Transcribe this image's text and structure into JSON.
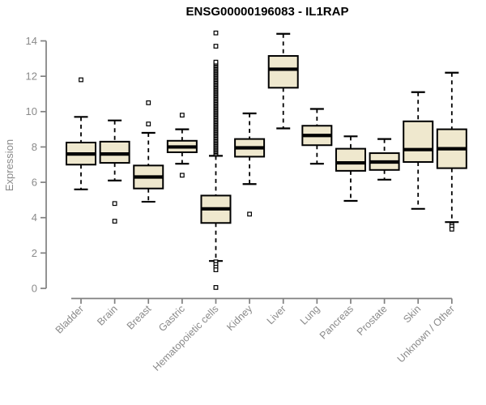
{
  "chart_data": {
    "type": "boxplot",
    "title": "ENSG00000196083 - IL1RAP",
    "ylabel": "Expression",
    "xlabel": "",
    "ylim": [
      0,
      14
    ],
    "ytick_step": 2,
    "grid": false,
    "legend": "none",
    "colors": {
      "box_fill": "#EFE8CE",
      "box_stroke": "#000000",
      "median": "#000000",
      "whisker": "#000000",
      "outlier_stroke": "#000000",
      "axis": "#808080",
      "axis_text": "#8a8a8a",
      "title_text": "#000000",
      "background": "#ffffff"
    },
    "categories": [
      "Bladder",
      "Brain",
      "Breast",
      "Gastric",
      "Hematopoietic cells",
      "Kidney",
      "Liver",
      "Lung",
      "Pancreas",
      "Prostate",
      "Skin",
      "Unknown / Other"
    ],
    "series": [
      {
        "name": "Bladder",
        "whisker_low": 5.6,
        "q1": 7.0,
        "median": 7.6,
        "q3": 8.25,
        "whisker_high": 9.7,
        "outliers": [
          11.8
        ],
        "outlier_ranges": []
      },
      {
        "name": "Brain",
        "whisker_low": 6.1,
        "q1": 7.1,
        "median": 7.6,
        "q3": 8.3,
        "whisker_high": 9.5,
        "outliers": [
          4.8,
          3.8
        ],
        "outlier_ranges": []
      },
      {
        "name": "Breast",
        "whisker_low": 4.9,
        "q1": 5.65,
        "median": 6.3,
        "q3": 6.95,
        "whisker_high": 8.8,
        "outliers": [
          10.5,
          9.3
        ],
        "outlier_ranges": []
      },
      {
        "name": "Gastric",
        "whisker_low": 7.05,
        "q1": 7.7,
        "median": 8.0,
        "q3": 8.35,
        "whisker_high": 9.0,
        "outliers": [
          9.8,
          6.4
        ],
        "outlier_ranges": []
      },
      {
        "name": "Hematopoietic cells",
        "whisker_low": 1.55,
        "q1": 3.7,
        "median": 4.5,
        "q3": 5.25,
        "whisker_high": 7.5,
        "outliers": [
          14.45,
          13.7,
          1.5,
          1.35,
          1.2,
          1.05,
          0.05
        ],
        "outlier_ranges": [
          {
            "min": 7.6,
            "max": 12.8,
            "count": 75
          }
        ]
      },
      {
        "name": "Kidney",
        "whisker_low": 5.9,
        "q1": 7.45,
        "median": 7.95,
        "q3": 8.45,
        "whisker_high": 9.9,
        "outliers": [
          4.2
        ],
        "outlier_ranges": []
      },
      {
        "name": "Liver",
        "whisker_low": 9.05,
        "q1": 11.35,
        "median": 12.4,
        "q3": 13.15,
        "whisker_high": 14.4,
        "outliers": [],
        "outlier_ranges": []
      },
      {
        "name": "Lung",
        "whisker_low": 7.05,
        "q1": 8.1,
        "median": 8.65,
        "q3": 9.2,
        "whisker_high": 10.15,
        "outliers": [],
        "outlier_ranges": []
      },
      {
        "name": "Pancreas",
        "whisker_low": 4.95,
        "q1": 6.65,
        "median": 7.1,
        "q3": 7.9,
        "whisker_high": 8.6,
        "outliers": [],
        "outlier_ranges": []
      },
      {
        "name": "Prostate",
        "whisker_low": 6.15,
        "q1": 6.7,
        "median": 7.15,
        "q3": 7.65,
        "whisker_high": 8.45,
        "outliers": [],
        "outlier_ranges": []
      },
      {
        "name": "Skin",
        "whisker_low": 4.5,
        "q1": 7.15,
        "median": 7.85,
        "q3": 9.45,
        "whisker_high": 11.1,
        "outliers": [],
        "outlier_ranges": []
      },
      {
        "name": "Unknown / Other",
        "whisker_low": 3.75,
        "q1": 6.8,
        "median": 7.9,
        "q3": 9.0,
        "whisker_high": 12.2,
        "outliers": [
          3.6,
          3.5,
          3.35
        ],
        "outlier_ranges": []
      }
    ]
  }
}
